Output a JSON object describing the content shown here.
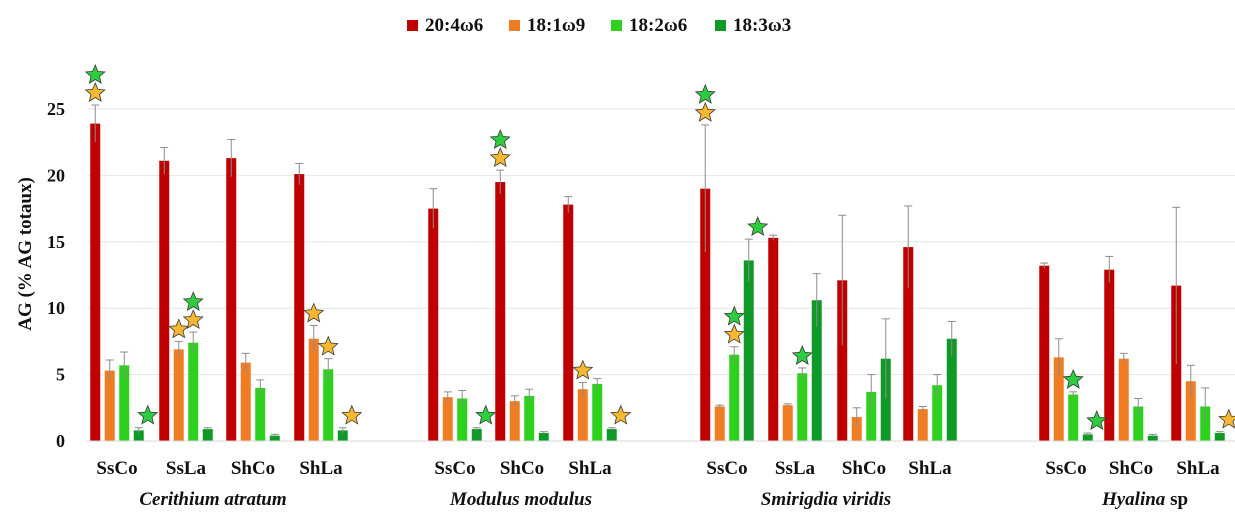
{
  "chart_data": {
    "type": "bar",
    "ylabel": "AG (% AG totaux)",
    "ylim": [
      0,
      27
    ],
    "yticks": [
      "0",
      "5",
      "10",
      "15",
      "20",
      "25"
    ],
    "grid": true,
    "legend_position": "top",
    "series": [
      {
        "name": "20:4ω6",
        "color": "#c00000"
      },
      {
        "name": "18:1ω9",
        "color": "#f07d24"
      },
      {
        "name": "18:2ω6",
        "color": "#2ed11e"
      },
      {
        "name": "18:3ω3",
        "color": "#0f9a28"
      }
    ],
    "groups": [
      {
        "name": "Cerithium atratum",
        "name_upright_suffix": "",
        "categories": [
          {
            "label": "SsCo",
            "values": [
              23.9,
              5.3,
              5.7,
              0.8
            ],
            "errors": [
              1.4,
              0.8,
              1.0,
              0.2
            ],
            "stars": [
              {
                "series": 0,
                "marks": [
                  "orange",
                  "green"
                ]
              },
              {
                "series": 3,
                "marks": [
                  "green"
                ]
              }
            ]
          },
          {
            "label": "SsLa",
            "values": [
              21.1,
              6.9,
              7.4,
              0.9
            ],
            "errors": [
              1.0,
              0.6,
              0.8,
              0.1
            ],
            "stars": [
              {
                "series": 1,
                "marks": [
                  "orange"
                ]
              },
              {
                "series": 2,
                "marks": [
                  "orange",
                  "green"
                ]
              }
            ]
          },
          {
            "label": "ShCo",
            "values": [
              21.3,
              5.9,
              4.0,
              0.4
            ],
            "errors": [
              1.4,
              0.7,
              0.6,
              0.1
            ],
            "stars": []
          },
          {
            "label": "ShLa",
            "values": [
              20.1,
              7.7,
              5.4,
              0.8
            ],
            "errors": [
              0.8,
              1.0,
              0.8,
              0.2
            ],
            "stars": [
              {
                "series": 1,
                "marks": [
                  "orange"
                ]
              },
              {
                "series": 2,
                "marks": [
                  "orange"
                ]
              },
              {
                "series": 3,
                "marks": [
                  "orange"
                ]
              }
            ]
          }
        ]
      },
      {
        "name": "Modulus modulus",
        "name_upright_suffix": "",
        "categories": [
          {
            "label": "SsCo",
            "values": [
              17.5,
              3.3,
              3.2,
              0.9
            ],
            "errors": [
              1.5,
              0.4,
              0.6,
              0.1
            ],
            "stars": [
              {
                "series": 3,
                "marks": [
                  "green"
                ]
              }
            ]
          },
          {
            "label": "ShCo",
            "values": [
              19.5,
              3.0,
              3.4,
              0.6
            ],
            "errors": [
              0.9,
              0.4,
              0.5,
              0.1
            ],
            "stars": [
              {
                "series": 0,
                "marks": [
                  "orange",
                  "green"
                ]
              }
            ]
          },
          {
            "label": "ShLa",
            "values": [
              17.8,
              3.9,
              4.3,
              0.9
            ],
            "errors": [
              0.6,
              0.5,
              0.4,
              0.1
            ],
            "stars": [
              {
                "series": 1,
                "marks": [
                  "orange"
                ]
              },
              {
                "series": 3,
                "marks": [
                  "orange"
                ]
              }
            ]
          }
        ]
      },
      {
        "name": "Smirigdia viridis",
        "name_upright_suffix": "",
        "categories": [
          {
            "label": "SsCo",
            "values": [
              19.0,
              2.6,
              6.5,
              13.6
            ],
            "errors": [
              4.8,
              0.1,
              0.6,
              1.6
            ],
            "stars": [
              {
                "series": 0,
                "marks": [
                  "orange",
                  "green"
                ]
              },
              {
                "series": 2,
                "marks": [
                  "orange",
                  "green"
                ]
              },
              {
                "series": 3,
                "marks": [
                  "green"
                ]
              }
            ]
          },
          {
            "label": "SsLa",
            "values": [
              15.3,
              2.7,
              5.1,
              10.6
            ],
            "errors": [
              0.2,
              0.1,
              0.4,
              2.0
            ],
            "stars": [
              {
                "series": 2,
                "marks": [
                  "green"
                ]
              }
            ]
          },
          {
            "label": "ShCo",
            "values": [
              12.1,
              1.8,
              3.7,
              6.2
            ],
            "errors": [
              4.9,
              0.7,
              1.3,
              3.0
            ],
            "stars": []
          },
          {
            "label": "ShLa",
            "values": [
              14.6,
              2.4,
              4.2,
              7.7
            ],
            "errors": [
              3.1,
              0.2,
              0.8,
              1.3
            ],
            "stars": []
          }
        ]
      },
      {
        "name": "Hyalina",
        "name_upright_suffix": " sp",
        "categories": [
          {
            "label": "SsCo",
            "values": [
              13.2,
              6.3,
              3.5,
              0.5
            ],
            "errors": [
              0.2,
              1.4,
              0.2,
              0.1
            ],
            "stars": [
              {
                "series": 2,
                "marks": [
                  "green"
                ]
              },
              {
                "series": 3,
                "marks": [
                  "green"
                ]
              }
            ]
          },
          {
            "label": "ShCo",
            "values": [
              12.9,
              6.2,
              2.6,
              0.4
            ],
            "errors": [
              1.0,
              0.4,
              0.6,
              0.1
            ],
            "stars": []
          },
          {
            "label": "ShLa",
            "values": [
              11.7,
              4.5,
              2.6,
              0.6
            ],
            "errors": [
              5.9,
              1.2,
              1.4,
              0.1
            ],
            "stars": [
              {
                "series": 3,
                "marks": [
                  "orange"
                ]
              }
            ]
          }
        ]
      }
    ]
  },
  "star_colors": {
    "orange": "#f7b731",
    "green": "#2ecc40"
  }
}
